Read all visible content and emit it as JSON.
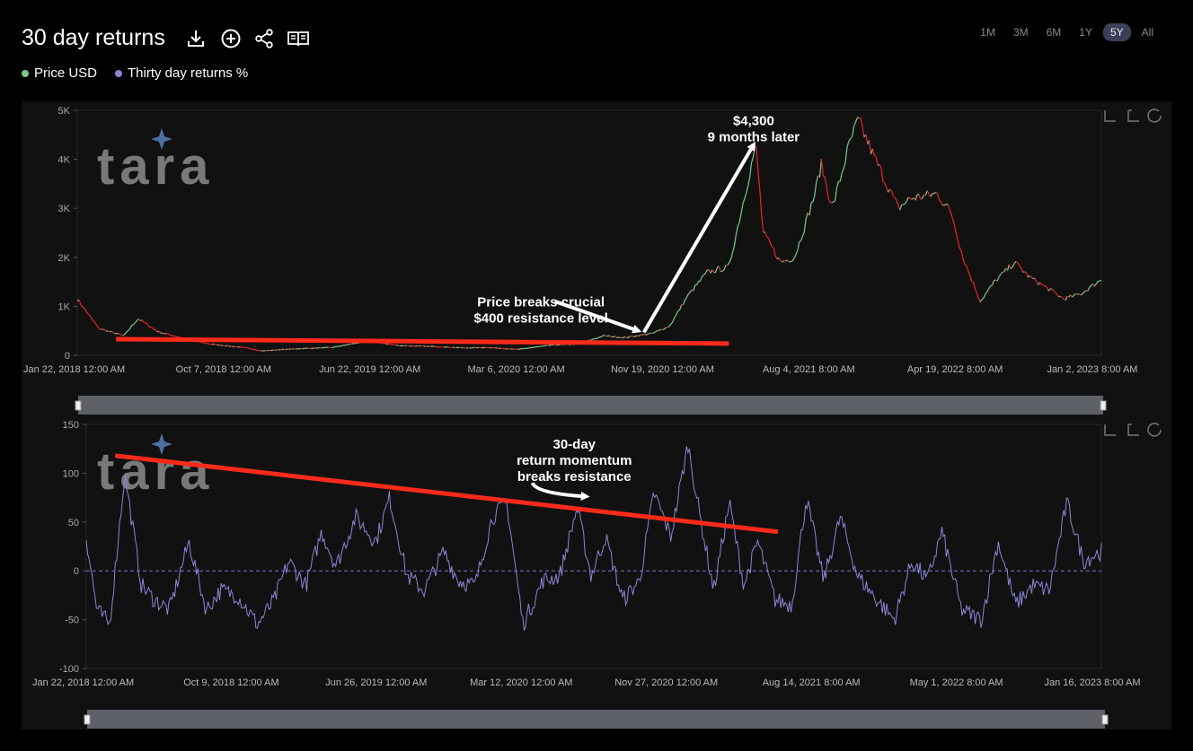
{
  "header": {
    "title": "30 day returns",
    "range_buttons": [
      "1M",
      "3M",
      "6M",
      "1Y",
      "5Y",
      "All"
    ],
    "active_range": "5Y"
  },
  "legend": [
    {
      "label": "Price USD",
      "color": "#7cc88a"
    },
    {
      "label": "Thirty day returns %",
      "color": "#8b86d6"
    }
  ],
  "watermark": "tara",
  "colors": {
    "up": "#7cc88a",
    "down": "#e8242b",
    "returns": "#8b86d6",
    "trendline": "#ff2a1a"
  },
  "chart_data": [
    {
      "type": "line",
      "name": "Price USD",
      "ylim": [
        0,
        5000
      ],
      "yticks": [
        0,
        1000,
        2000,
        3000,
        4000,
        5000
      ],
      "ytick_labels": [
        "0",
        "1K",
        "2K",
        "3K",
        "4K",
        "5K"
      ],
      "xtick_labels": [
        "Jan 22, 2018 12:00 AM",
        "Oct 7, 2018 12:00 AM",
        "Jun 22, 2019 12:00 AM",
        "Mar 6, 2020 12:00 AM",
        "Nov 19, 2020 12:00 AM",
        "Aug 4, 2021 8:00 AM",
        "Apr 19, 2022 8:00 AM",
        "Jan 2, 2023 8:00 AM"
      ],
      "x": [
        "2018-01-22",
        "2018-03-01",
        "2018-04-15",
        "2018-05-10",
        "2018-06-15",
        "2018-08-15",
        "2018-09-15",
        "2018-11-20",
        "2018-12-15",
        "2019-02-10",
        "2019-04-20",
        "2019-06-22",
        "2019-08-15",
        "2019-10-15",
        "2019-12-15",
        "2020-01-20",
        "2020-03-15",
        "2020-05-15",
        "2020-06-30",
        "2020-08-15",
        "2020-09-20",
        "2020-11-10",
        "2020-12-10",
        "2021-01-10",
        "2021-02-15",
        "2021-03-25",
        "2021-05-12",
        "2021-05-25",
        "2021-06-25",
        "2021-07-20",
        "2021-08-25",
        "2021-09-05",
        "2021-09-25",
        "2021-10-25",
        "2021-11-10",
        "2021-12-10",
        "2022-01-20",
        "2022-02-10",
        "2022-03-30",
        "2022-04-25",
        "2022-05-15",
        "2022-06-15",
        "2022-07-10",
        "2022-08-15",
        "2022-09-10",
        "2022-10-15",
        "2022-11-10",
        "2022-12-10",
        "2023-01-16"
      ],
      "y": [
        1150,
        550,
        400,
        750,
        480,
        300,
        230,
        150,
        90,
        130,
        160,
        290,
        200,
        180,
        150,
        160,
        120,
        210,
        230,
        400,
        360,
        450,
        600,
        1200,
        1700,
        1800,
        4300,
        2500,
        1900,
        2000,
        3300,
        3900,
        3000,
        4300,
        4800,
        4000,
        3000,
        3200,
        3300,
        2900,
        2000,
        1100,
        1500,
        1900,
        1600,
        1350,
        1150,
        1250,
        1550
      ],
      "annotations": [
        {
          "text": [
            "Price breaks crucial",
            "$400 resistance level"
          ],
          "x": "2020-04-25",
          "y": 1000
        },
        {
          "text": [
            "$4,300",
            "9 months later"
          ],
          "x": "2021-05-08",
          "y": 4700
        }
      ],
      "trendline": {
        "x": [
          "2018-04-01",
          "2021-03-25"
        ],
        "y": [
          330,
          240
        ]
      }
    },
    {
      "type": "line",
      "name": "Thirty day returns %",
      "ylim": [
        -100,
        150
      ],
      "yticks": [
        -100,
        -50,
        0,
        50,
        100,
        150
      ],
      "ytick_labels": [
        "-100",
        "-50",
        "0",
        "50",
        "100",
        "150"
      ],
      "xtick_labels": [
        "Jan 22, 2018 12:00 AM",
        "Oct 9, 2018 12:00 AM",
        "Jun 26, 2019 12:00 AM",
        "Mar 12, 2020 12:00 AM",
        "Nov 27, 2020 12:00 AM",
        "Aug 14, 2021 8:00 AM",
        "May 1, 2022 8:00 AM",
        "Jan 16, 2023 8:00 AM"
      ],
      "x": [
        "2018-01-22",
        "2018-02-10",
        "2018-03-05",
        "2018-04-01",
        "2018-05-01",
        "2018-05-25",
        "2018-06-20",
        "2018-07-25",
        "2018-08-25",
        "2018-09-20",
        "2018-10-20",
        "2018-11-25",
        "2018-12-25",
        "2019-01-20",
        "2019-02-20",
        "2019-03-20",
        "2019-04-15",
        "2019-05-20",
        "2019-06-25",
        "2019-07-20",
        "2019-08-20",
        "2019-09-20",
        "2019-10-25",
        "2019-11-20",
        "2019-12-20",
        "2020-01-20",
        "2020-02-15",
        "2020-03-15",
        "2020-04-20",
        "2020-05-20",
        "2020-06-20",
        "2020-07-15",
        "2020-08-10",
        "2020-09-10",
        "2020-10-10",
        "2020-11-05",
        "2020-12-05",
        "2021-01-05",
        "2021-01-25",
        "2021-02-20",
        "2021-03-20",
        "2021-04-15",
        "2021-05-10",
        "2021-06-10",
        "2021-07-10",
        "2021-08-05",
        "2021-09-05",
        "2021-10-05",
        "2021-11-05",
        "2021-12-10",
        "2022-01-10",
        "2022-02-10",
        "2022-03-10",
        "2022-04-05",
        "2022-05-10",
        "2022-06-15",
        "2022-07-15",
        "2022-08-15",
        "2022-09-15",
        "2022-10-15",
        "2022-11-15",
        "2022-12-15",
        "2023-01-16"
      ],
      "y": [
        35,
        -40,
        -55,
        100,
        -15,
        -30,
        -40,
        30,
        -40,
        -20,
        -25,
        -55,
        -30,
        10,
        -15,
        40,
        5,
        55,
        30,
        75,
        -5,
        -20,
        20,
        -10,
        -15,
        55,
        70,
        -55,
        -10,
        -5,
        65,
        -5,
        35,
        -30,
        -10,
        80,
        35,
        130,
        60,
        -20,
        70,
        -15,
        30,
        -30,
        -35,
        75,
        -10,
        55,
        -5,
        -30,
        -50,
        10,
        -10,
        40,
        -40,
        -50,
        30,
        -35,
        -15,
        -20,
        70,
        10,
        20
      ]
    },
    {
      "type": "annotations",
      "name": "returns-annotations",
      "annotations": [
        {
          "text": [
            "30-day",
            "return momentum",
            "breaks resistance"
          ],
          "x": "2020-06-15",
          "y": 125
        }
      ],
      "trendline": {
        "x": [
          "2018-03-15",
          "2021-06-15"
        ],
        "y": [
          118,
          40
        ]
      }
    }
  ]
}
